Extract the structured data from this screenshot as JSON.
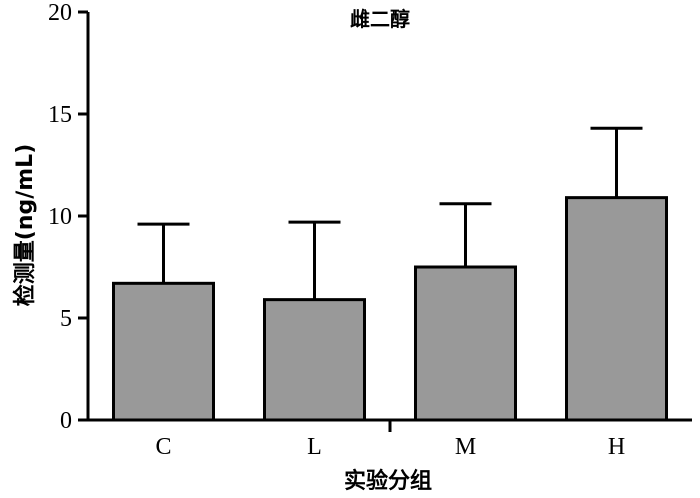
{
  "chart_data": {
    "type": "bar",
    "title": "雌二醇",
    "xlabel": "实验分组",
    "ylabel": "检测量(ng/mL)",
    "categories": [
      "C",
      "L",
      "M",
      "H"
    ],
    "values": [
      6.7,
      5.9,
      7.5,
      10.9
    ],
    "errors": [
      2.9,
      3.8,
      3.1,
      3.4
    ],
    "ylim": [
      0,
      20
    ],
    "yticks": [
      0,
      5,
      10,
      15,
      20
    ],
    "ytick_labels": [
      "0",
      "5",
      "10",
      "15",
      "20"
    ],
    "bar_color": "#999999",
    "grid": false,
    "legend": "none"
  }
}
